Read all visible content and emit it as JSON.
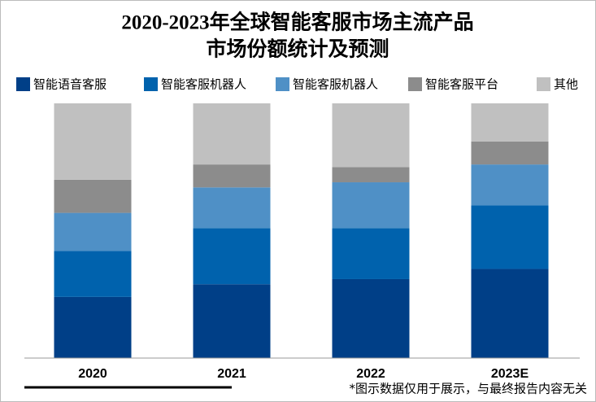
{
  "chart_data": {
    "type": "stacked_bar",
    "title": [
      "2020-2023年全球智能客服市场主流产品",
      "市场份额统计及预测"
    ],
    "categories": [
      "2020",
      "2021",
      "2022",
      "2023E"
    ],
    "series": [
      {
        "name": "智能语音客服",
        "color": "#003f87",
        "values": [
          24,
          29,
          31,
          35
        ]
      },
      {
        "name": "智能客服机器人",
        "color": "#0062ad",
        "values": [
          18,
          22,
          20,
          25
        ]
      },
      {
        "name": "智能客服机器人",
        "color": "#4f90c6",
        "values": [
          15,
          16,
          18,
          16
        ]
      },
      {
        "name": "智能客服平台",
        "color": "#8c8c8c",
        "values": [
          13,
          9,
          6,
          9
        ]
      },
      {
        "name": "其他",
        "color": "#c0c0c0",
        "values": [
          30,
          24,
          25,
          15
        ]
      }
    ],
    "ylim": [
      0,
      100
    ],
    "note": "*图示数据仅用于展示，与最终报告内容无关"
  }
}
